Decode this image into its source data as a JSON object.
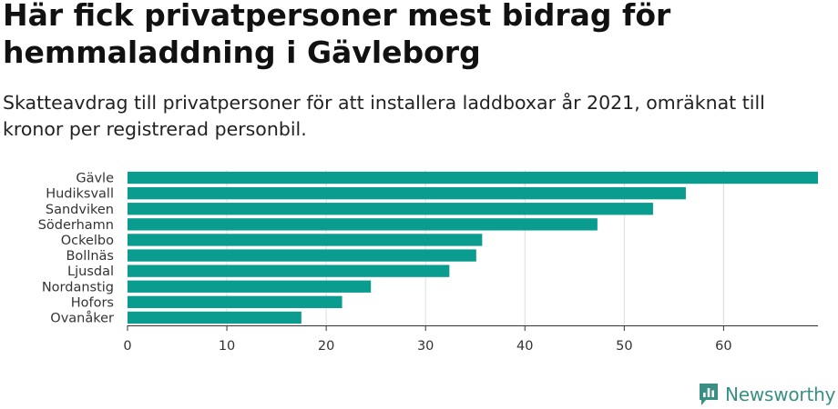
{
  "header": {
    "title": "Här fick privatpersoner mest bidrag för hemmaladdning i Gävleborg",
    "subtitle": "Skatteavdrag till privatpersoner för att installera laddboxar år 2021, omräknat till kronor per registrerad personbil."
  },
  "brand": {
    "name": "Newsworthy",
    "icon": "newsworthy-logo-icon"
  },
  "colors": {
    "bar": "#0a9d8f",
    "grid": "#dddddd",
    "axis": "#333333",
    "brand": "#3a8f84"
  },
  "chart_data": {
    "type": "bar",
    "orientation": "horizontal",
    "categories": [
      "Gävle",
      "Hudiksvall",
      "Sandviken",
      "Söderhamn",
      "Ockelbo",
      "Bollnäs",
      "Ljusdal",
      "Nordanstig",
      "Hofors",
      "Ovanåker"
    ],
    "values": [
      69.5,
      56.2,
      52.9,
      47.3,
      35.7,
      35.1,
      32.4,
      24.5,
      21.6,
      17.5
    ],
    "xlim": [
      0,
      69.5
    ],
    "xticks": [
      0,
      10,
      20,
      30,
      40,
      50,
      60
    ],
    "xlabel": "",
    "ylabel": "",
    "grid": true
  }
}
